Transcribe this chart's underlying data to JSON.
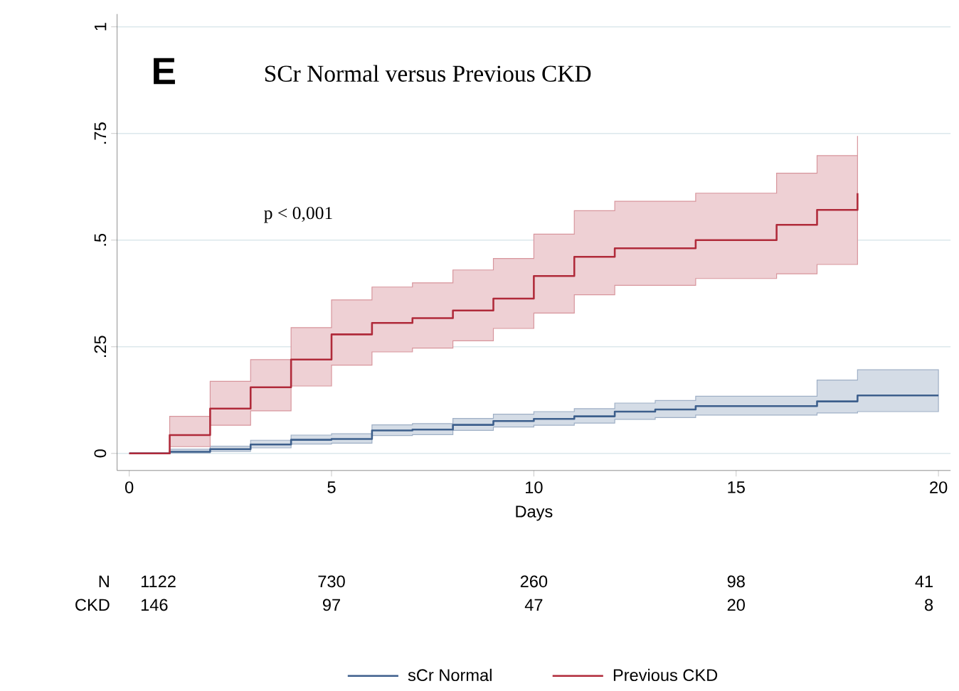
{
  "chart_data": {
    "type": "step",
    "title": "SCr Normal versus Previous CKD",
    "xlabel": "Days",
    "annotations": [
      "E",
      "p < 0,001",
      "N",
      "1122",
      "730",
      "260",
      "98",
      "41",
      "CKD",
      "146",
      "97",
      "47",
      "20",
      "8"
    ],
    "xlim": [
      -0.3,
      20.3
    ],
    "ylim": [
      -0.04,
      1.03
    ],
    "xticks": [
      0,
      5,
      10,
      15,
      20
    ],
    "yticks": [
      0,
      {
        "value": 0.25,
        "label": ".25"
      },
      {
        "value": 0.5,
        "label": ".5"
      },
      {
        "value": 0.75,
        "label": ".75"
      },
      1
    ],
    "grid": "y",
    "legend": "bottom",
    "series": [
      {
        "name": "sCr Normal",
        "color": "#3d5f8c",
        "x": [
          0,
          1,
          2,
          3,
          4,
          5,
          6,
          7,
          8,
          9,
          10,
          11,
          12,
          13,
          14,
          15,
          16,
          17,
          18,
          20
        ],
        "values": [
          0,
          0.004,
          0.01,
          0.021,
          0.032,
          0.034,
          0.054,
          0.056,
          0.067,
          0.076,
          0.081,
          0.087,
          0.098,
          0.103,
          0.111,
          0.111,
          0.111,
          0.122,
          0.136,
          0.136
        ],
        "lower": [
          0,
          0.001,
          0.005,
          0.013,
          0.022,
          0.024,
          0.042,
          0.044,
          0.054,
          0.062,
          0.066,
          0.071,
          0.08,
          0.084,
          0.09,
          0.09,
          0.09,
          0.095,
          0.098,
          0.098
        ],
        "upper": [
          0,
          0.01,
          0.017,
          0.031,
          0.043,
          0.046,
          0.067,
          0.07,
          0.082,
          0.092,
          0.098,
          0.105,
          0.118,
          0.124,
          0.134,
          0.134,
          0.134,
          0.172,
          0.196,
          0.196
        ]
      },
      {
        "name": "Previous CKD",
        "color": "#b02a3a",
        "x": [
          0,
          1,
          2,
          3,
          4,
          5,
          6,
          7,
          8,
          9,
          10,
          11,
          12,
          13,
          14,
          15,
          16,
          17,
          18
        ],
        "values": [
          0,
          0.043,
          0.105,
          0.155,
          0.22,
          0.279,
          0.306,
          0.317,
          0.335,
          0.363,
          0.416,
          0.461,
          0.481,
          0.481,
          0.5,
          0.5,
          0.536,
          0.571,
          0.61
        ],
        "lower": [
          0,
          0.016,
          0.066,
          0.1,
          0.158,
          0.207,
          0.238,
          0.247,
          0.264,
          0.293,
          0.329,
          0.372,
          0.394,
          0.394,
          0.41,
          0.41,
          0.421,
          0.443,
          0.443
        ],
        "upper": [
          0,
          0.087,
          0.169,
          0.22,
          0.295,
          0.36,
          0.39,
          0.4,
          0.43,
          0.457,
          0.514,
          0.569,
          0.591,
          0.591,
          0.61,
          0.61,
          0.657,
          0.698,
          0.744
        ]
      }
    ]
  }
}
